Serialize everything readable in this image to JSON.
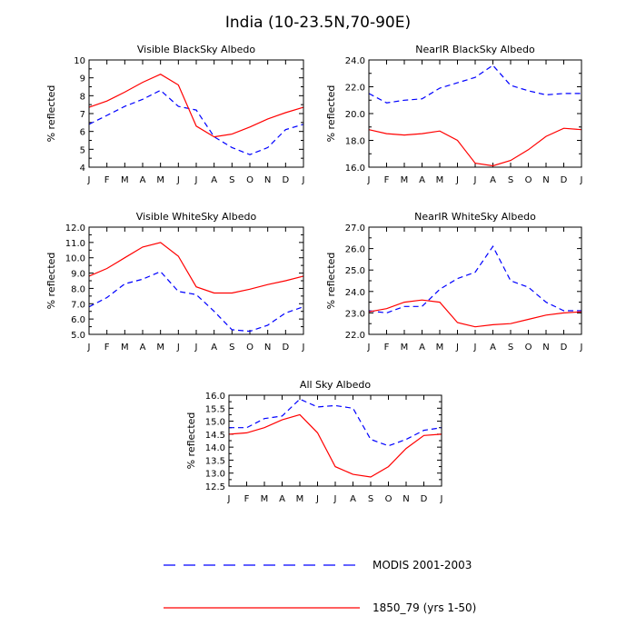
{
  "figure": {
    "title": "India (10-23.5N,70-90E)",
    "legend": [
      {
        "label": "MODIS 2001-2003",
        "color": "#0000ff",
        "dash": true
      },
      {
        "label": "1850_79 (yrs 1-50)",
        "color": "#ff0000",
        "dash": false
      }
    ],
    "colors": {
      "modis": "#0000ff",
      "model": "#ff0000"
    }
  },
  "chart_data": [
    {
      "type": "line",
      "title": "Visible BlackSky Albedo",
      "ylabel": "% reflected",
      "x": [
        "J",
        "F",
        "M",
        "A",
        "M",
        "J",
        "J",
        "A",
        "S",
        "O",
        "N",
        "D",
        "J"
      ],
      "ylim": [
        4,
        10
      ],
      "yticks": [
        "4",
        "5",
        "6",
        "7",
        "8",
        "9",
        "10"
      ],
      "series": [
        {
          "name": "MODIS 2001-2003",
          "values": [
            6.4,
            6.9,
            7.4,
            7.8,
            8.3,
            7.4,
            7.2,
            5.7,
            5.1,
            4.7,
            5.1,
            6.1,
            6.4
          ]
        },
        {
          "name": "1850_79 (yrs 1-50)",
          "values": [
            7.35,
            7.7,
            8.2,
            8.75,
            9.2,
            8.6,
            6.3,
            5.7,
            5.85,
            6.25,
            6.7,
            7.05,
            7.35
          ]
        }
      ]
    },
    {
      "type": "line",
      "title": "NearIR BlackSky Albedo",
      "ylabel": "% reflected",
      "x": [
        "J",
        "F",
        "M",
        "A",
        "M",
        "J",
        "J",
        "A",
        "S",
        "O",
        "N",
        "D",
        "J"
      ],
      "ylim": [
        16,
        24
      ],
      "yticks": [
        "16.0",
        "18.0",
        "20.0",
        "22.0",
        "24.0"
      ],
      "series": [
        {
          "name": "MODIS 2001-2003",
          "values": [
            21.5,
            20.8,
            21.0,
            21.1,
            21.9,
            22.3,
            22.7,
            23.6,
            22.1,
            21.7,
            21.4,
            21.5,
            21.5
          ]
        },
        {
          "name": "1850_79 (yrs 1-50)",
          "values": [
            18.8,
            18.5,
            18.4,
            18.5,
            18.7,
            18.0,
            16.3,
            16.1,
            16.5,
            17.3,
            18.3,
            18.9,
            18.8
          ]
        }
      ]
    },
    {
      "type": "line",
      "title": "Visible WhiteSky Albedo",
      "ylabel": "% reflected",
      "x": [
        "J",
        "F",
        "M",
        "A",
        "M",
        "J",
        "J",
        "A",
        "S",
        "O",
        "N",
        "D",
        "J"
      ],
      "ylim": [
        5,
        12
      ],
      "yticks": [
        "5.0",
        "6.0",
        "7.0",
        "8.0",
        "9.0",
        "10.0",
        "11.0",
        "12.0"
      ],
      "series": [
        {
          "name": "MODIS 2001-2003",
          "values": [
            6.8,
            7.4,
            8.3,
            8.6,
            9.1,
            7.8,
            7.6,
            6.5,
            5.3,
            5.2,
            5.6,
            6.4,
            6.8
          ]
        },
        {
          "name": "1850_79 (yrs 1-50)",
          "values": [
            8.8,
            9.3,
            10.0,
            10.7,
            11.0,
            10.1,
            8.1,
            7.7,
            7.7,
            7.95,
            8.25,
            8.5,
            8.8
          ]
        }
      ]
    },
    {
      "type": "line",
      "title": "NearIR WhiteSky Albedo",
      "ylabel": "% reflected",
      "x": [
        "J",
        "F",
        "M",
        "A",
        "M",
        "J",
        "J",
        "A",
        "S",
        "O",
        "N",
        "D",
        "J"
      ],
      "ylim": [
        22,
        27
      ],
      "yticks": [
        "22.0",
        "23.0",
        "24.0",
        "25.0",
        "26.0",
        "27.0"
      ],
      "series": [
        {
          "name": "MODIS 2001-2003",
          "values": [
            23.1,
            23.0,
            23.3,
            23.3,
            24.1,
            24.6,
            24.9,
            26.1,
            24.5,
            24.2,
            23.5,
            23.1,
            23.1
          ]
        },
        {
          "name": "1850_79 (yrs 1-50)",
          "values": [
            23.05,
            23.2,
            23.5,
            23.6,
            23.5,
            22.55,
            22.35,
            22.45,
            22.5,
            22.7,
            22.9,
            23.0,
            23.05
          ]
        }
      ]
    },
    {
      "type": "line",
      "title": "All Sky Albedo",
      "ylabel": "% reflected",
      "x": [
        "J",
        "F",
        "M",
        "A",
        "M",
        "J",
        "J",
        "A",
        "S",
        "O",
        "N",
        "D",
        "J"
      ],
      "ylim": [
        12.5,
        16
      ],
      "yticks": [
        "12.5",
        "13.0",
        "13.5",
        "14.0",
        "14.5",
        "15.0",
        "15.5",
        "16.0"
      ],
      "series": [
        {
          "name": "MODIS 2001-2003",
          "values": [
            14.75,
            14.75,
            15.1,
            15.2,
            15.85,
            15.55,
            15.6,
            15.5,
            14.3,
            14.05,
            14.3,
            14.65,
            14.75
          ]
        },
        {
          "name": "1850_79 (yrs 1-50)",
          "values": [
            14.5,
            14.55,
            14.75,
            15.05,
            15.25,
            14.55,
            13.25,
            12.95,
            12.85,
            13.25,
            13.95,
            14.45,
            14.5
          ]
        }
      ]
    }
  ]
}
